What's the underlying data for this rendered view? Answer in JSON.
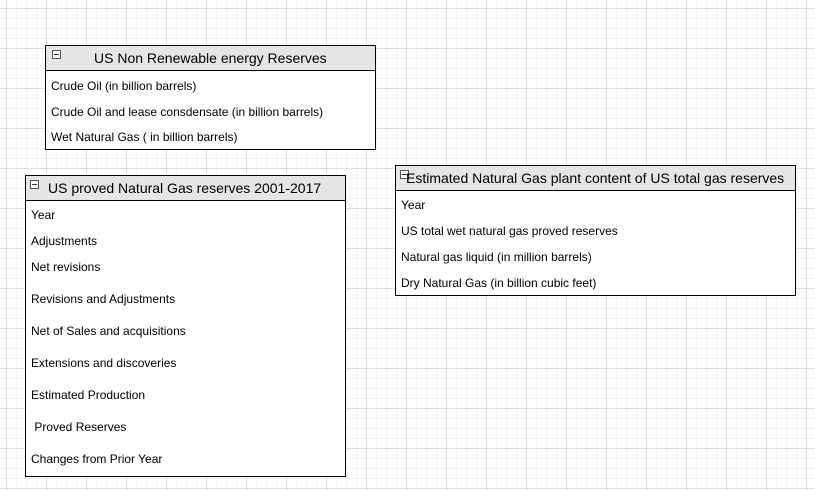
{
  "tables": [
    {
      "title": "US Non Renewable energy Reserves",
      "fields": [
        "Crude Oil (in billion barrels)",
        "Crude Oil and lease consdensate (in billion barrels)",
        "Wet Natural Gas ( in billion barrels)"
      ]
    },
    {
      "title": "US proved Natural Gas reserves 2001-2017",
      "fields": [
        "Year",
        "Adjustments",
        "Net revisions",
        "Revisions and Adjustments",
        "Net of Sales and acquisitions",
        "Extensions and discoveries",
        "Estimated Production",
        " Proved Reserves",
        "Changes from Prior Year"
      ]
    },
    {
      "title": "Estimated Natural Gas plant content of US total gas reserves",
      "fields": [
        "Year",
        "US total wet natural gas proved reserves",
        "Natural gas liquid (in million barrels)",
        "Dry Natural Gas (in billion cubic feet)"
      ]
    }
  ]
}
